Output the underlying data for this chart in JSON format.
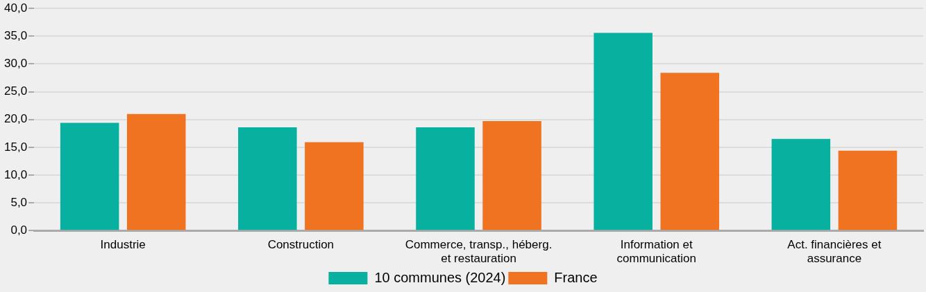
{
  "chart_data": {
    "type": "bar",
    "categories": [
      "Industrie",
      "Construction",
      "Commerce, transp., héberg. et restauration",
      "Information et communication",
      "Act. financières et assurance"
    ],
    "series": [
      {
        "name": "10 communes (2024)",
        "color": "#07b09f",
        "values": [
          19.4,
          18.6,
          18.6,
          35.6,
          16.5
        ]
      },
      {
        "name": "France",
        "color": "#ef7320",
        "values": [
          21.0,
          15.9,
          19.7,
          28.4,
          14.4
        ]
      }
    ],
    "ylim": [
      0,
      40
    ],
    "yticks": [
      {
        "value": 0,
        "label": "0,0"
      },
      {
        "value": 5,
        "label": "5,0"
      },
      {
        "value": 10,
        "label": "10,0"
      },
      {
        "value": 15,
        "label": "15,0"
      },
      {
        "value": 20,
        "label": "20,0"
      },
      {
        "value": 25,
        "label": "25,0"
      },
      {
        "value": 30,
        "label": "30,0"
      },
      {
        "value": 35,
        "label": "35,0"
      },
      {
        "value": 40,
        "label": "40,0"
      }
    ],
    "grid": "y",
    "legend": "bottom"
  }
}
